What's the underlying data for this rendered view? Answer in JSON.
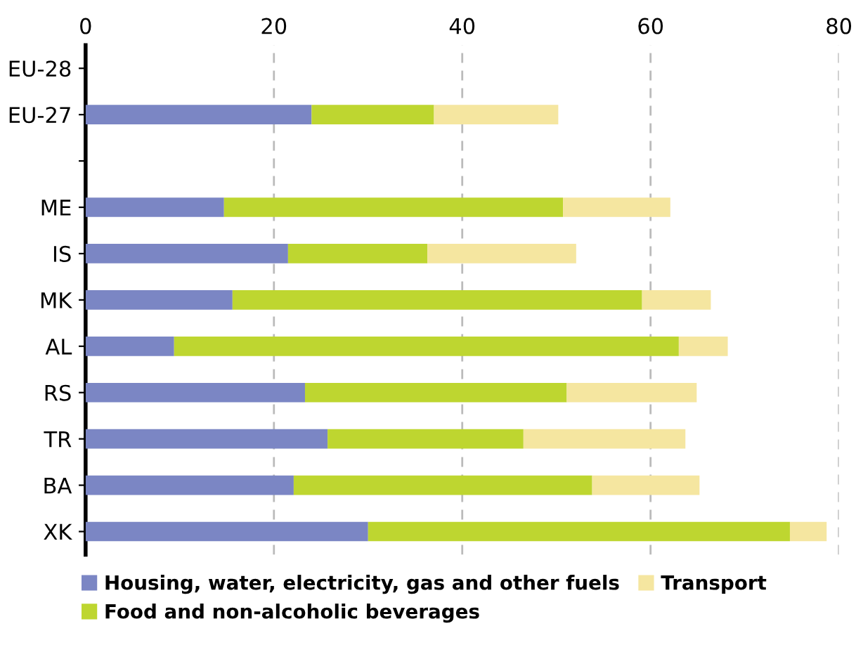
{
  "chart_data": {
    "type": "bar",
    "orientation": "horizontal",
    "stacked": true,
    "categories": [
      "EU-28",
      "EU-27",
      null,
      "ME",
      "IS",
      "MK",
      "AL",
      "RS",
      "TR",
      "BA",
      "XK"
    ],
    "series": [
      {
        "name": "Housing, water, electricity, gas and other fuels",
        "color": "#7b86c4",
        "values": [
          null,
          24.0,
          null,
          14.7,
          21.5,
          15.6,
          9.4,
          23.3,
          25.7,
          22.1,
          30.0
        ]
      },
      {
        "name": "Food and non-alcoholic beverages",
        "color": "#bed630",
        "values": [
          null,
          13.0,
          null,
          36.0,
          14.8,
          43.5,
          53.6,
          27.8,
          20.8,
          31.7,
          44.8
        ]
      },
      {
        "name": "Transport",
        "color": "#f5e6a0",
        "values": [
          null,
          13.2,
          null,
          11.4,
          15.8,
          7.3,
          5.2,
          13.8,
          17.2,
          11.4,
          3.9
        ]
      }
    ],
    "xlim": [
      0,
      80
    ],
    "xticks": [
      0,
      20,
      40,
      60,
      80
    ],
    "grid": "x",
    "legend": "bottom"
  }
}
